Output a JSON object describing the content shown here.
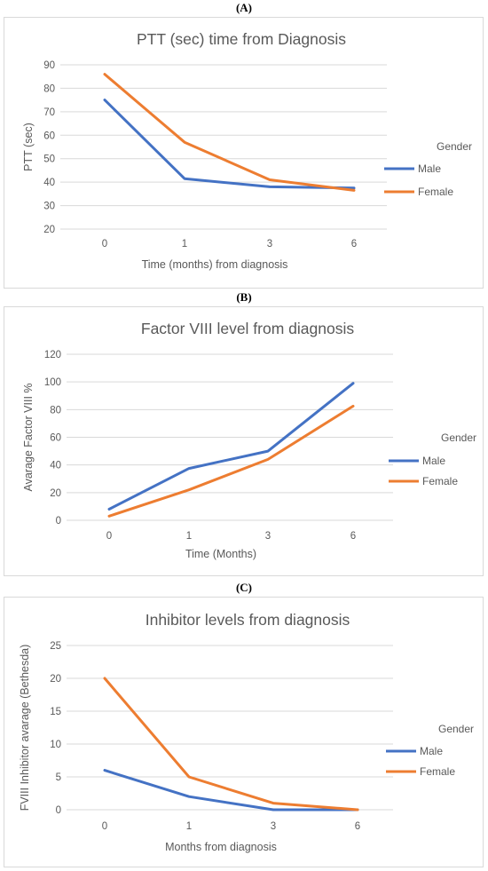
{
  "panels": [
    {
      "label": "(A)",
      "chart_data": {
        "type": "line",
        "title": "PTT (sec) time from Diagnosis",
        "xlabel": "Time (months) from diagnosis",
        "ylabel": "PTT (sec)",
        "categories": [
          "0",
          "1",
          "3",
          "6"
        ],
        "ylim": [
          20,
          90
        ],
        "yticks": [
          20,
          30,
          40,
          50,
          60,
          70,
          80,
          90
        ],
        "grid": true,
        "legend": {
          "title": "Gender",
          "placement": "right"
        },
        "series": [
          {
            "name": "Male",
            "color": "#4472C4",
            "values": [
              75,
              41.5,
              38,
              37.5
            ]
          },
          {
            "name": "Female",
            "color": "#ED7D31",
            "values": [
              86,
              57,
              41,
              36.5
            ]
          }
        ]
      }
    },
    {
      "label": "(B)",
      "chart_data": {
        "type": "line",
        "title": "Factor VIII level from diagnosis",
        "xlabel": "Time (Months)",
        "ylabel": "Avarage Factor VIII %",
        "categories": [
          "0",
          "1",
          "3",
          "6"
        ],
        "ylim": [
          0,
          120
        ],
        "yticks": [
          0,
          20,
          40,
          60,
          80,
          100,
          120
        ],
        "grid": true,
        "legend": {
          "title": "Gender",
          "placement": "right"
        },
        "series": [
          {
            "name": "Male",
            "color": "#4472C4",
            "values": [
              8,
              37.5,
              50,
              99
            ]
          },
          {
            "name": "Female",
            "color": "#ED7D31",
            "values": [
              3,
              22,
              44,
              82.5
            ]
          }
        ]
      }
    },
    {
      "label": "(C)",
      "chart_data": {
        "type": "line",
        "title": "Inhibitor levels from diagnosis",
        "xlabel": "Months from diagnosis",
        "ylabel": "FVIII Inhibitor avarage (Bethesda)",
        "categories": [
          "0",
          "1",
          "3",
          "6"
        ],
        "ylim": [
          0,
          25
        ],
        "yticks": [
          0,
          5,
          10,
          15,
          20,
          25
        ],
        "grid": true,
        "legend": {
          "title": "Gender",
          "placement": "right"
        },
        "series": [
          {
            "name": "Male",
            "color": "#4472C4",
            "values": [
              6,
              2,
              0,
              0
            ]
          },
          {
            "name": "Female",
            "color": "#ED7D31",
            "values": [
              20,
              5,
              1,
              0
            ]
          }
        ]
      }
    }
  ]
}
